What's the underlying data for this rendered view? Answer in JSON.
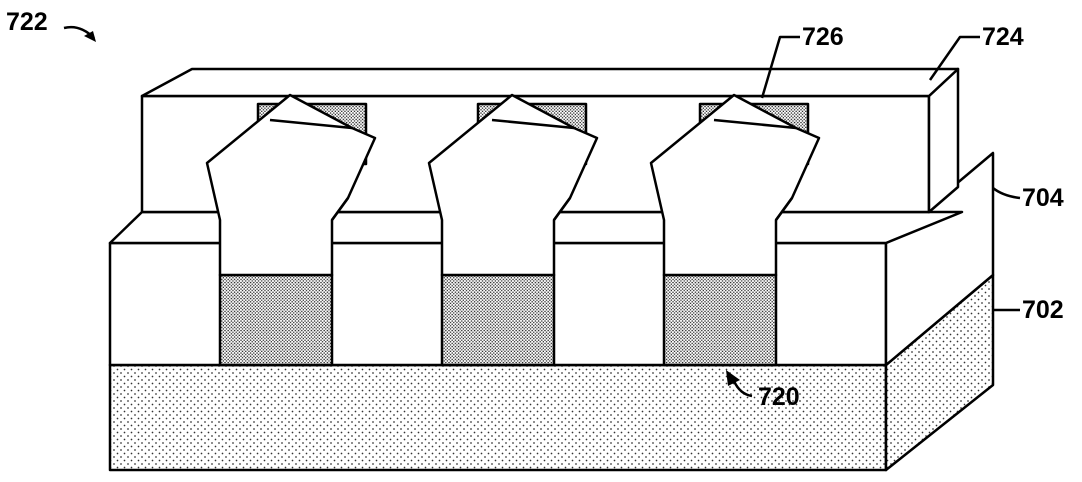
{
  "labels": {
    "figure_ref": "722",
    "gate": "724",
    "gate_contact": "726",
    "insulator": "704",
    "substrate": "702",
    "fin_base": "720"
  },
  "colors": {
    "line": "#000000",
    "background": "#ffffff",
    "stipple_dot": "#333333",
    "dense_stipple_dot": "#222222"
  }
}
